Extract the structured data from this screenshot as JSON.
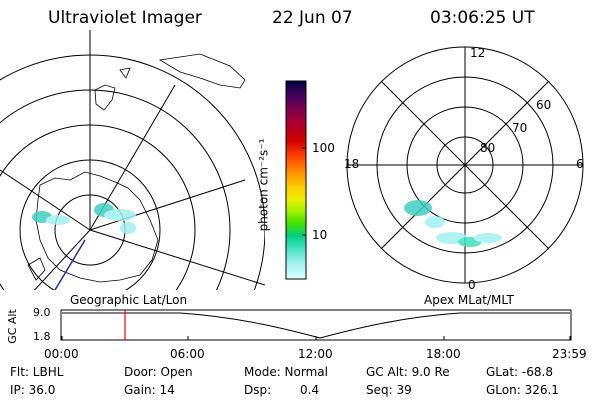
{
  "header": {
    "title": "Ultraviolet Imager",
    "date": "22 Jun 07",
    "time": "03:06:25 UT"
  },
  "left_map": {
    "caption": "Geographic Lat/Lon"
  },
  "right_map": {
    "caption": "Apex MLat/MLT",
    "mlt_labels": [
      "12",
      "18",
      "6",
      "0"
    ],
    "lat_labels": [
      "60",
      "70",
      "80"
    ]
  },
  "colorbar": {
    "unit_label": "photon cm⁻²s⁻¹",
    "ticks": [
      "100",
      "10"
    ],
    "colors": [
      "#000040",
      "#4a0060",
      "#9b0040",
      "#d00000",
      "#ff4000",
      "#ff9000",
      "#ffd000",
      "#e8f000",
      "#a0f000",
      "#40e000",
      "#00d080",
      "#40e0c0",
      "#a0f0f0",
      "#e0ffff"
    ]
  },
  "altitude_strip": {
    "ylabel": "GC Alt",
    "ymax": "9.0",
    "ymin": "1.8",
    "xticks": [
      "00:00",
      "06:00",
      "12:00",
      "18:00",
      "23:59"
    ],
    "marker_color": "#ff0000"
  },
  "info": {
    "flt": "Flt: LBHL",
    "ip": "IP: 36.0",
    "door": "Door: Open",
    "gain": "Gain: 14",
    "mode": "Mode: Normal",
    "dsp_label": "Dsp:",
    "dsp_value": "0.4",
    "gcalt": "GC Alt: 9.0 Re",
    "seq": "Seq: 39",
    "glat": "GLat: -68.8",
    "glon": "GLon: 326.1"
  }
}
